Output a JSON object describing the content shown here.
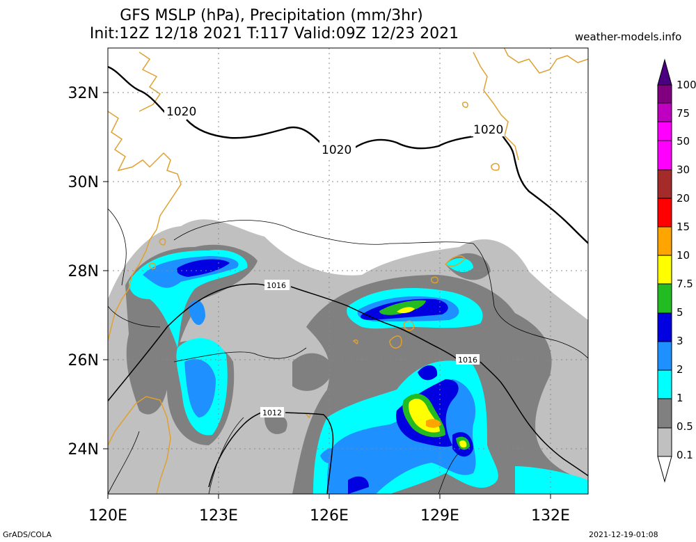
{
  "title_line1": "GFS MSLP (hPa), Precipitation (mm/3hr)",
  "title_line2": "Init:12Z 12/18 2021 T:117 Valid:09Z 12/23 2021",
  "credit": "weather-models.info",
  "footer_left": "GrADS/COLA",
  "footer_right": "2021-12-19-01:08",
  "lat_labels": [
    "32N",
    "30N",
    "28N",
    "26N",
    "24N"
  ],
  "lon_labels": [
    "120E",
    "123E",
    "126E",
    "129E",
    "132E"
  ],
  "colorbar": {
    "levels": [
      "0.1",
      "0.5",
      "1",
      "2",
      "3",
      "5",
      "7.5",
      "10",
      "15",
      "20",
      "30",
      "50",
      "75",
      "100"
    ],
    "colors": [
      "#c0c0c0",
      "#808080",
      "#5a5a5a",
      "#00ffff",
      "#1e90ff",
      "#0000e0",
      "#22bb22",
      "#ffff00",
      "#ffa500",
      "#ff0000",
      "#a52a2a",
      "#ff00ff",
      "#c000c0",
      "#800080",
      "#4b0082"
    ]
  },
  "isobars": [
    {
      "label": "1020",
      "pressure_hpa": 1020
    },
    {
      "label": "1020",
      "pressure_hpa": 1020
    },
    {
      "label": "1020",
      "pressure_hpa": 1020
    },
    {
      "label": "1016",
      "pressure_hpa": 1016
    },
    {
      "label": "1016",
      "pressure_hpa": 1016
    },
    {
      "label": "1012",
      "pressure_hpa": 1012
    }
  ],
  "map": {
    "lon_min": 120,
    "lon_max": 133,
    "lat_min": 23,
    "lat_max": 33,
    "precip_colors": {
      "light": "#c0c0c0",
      "med": "#808080",
      "dark": "#5a5a5a",
      "cyan": "#00ffff",
      "lblue": "#1e90ff",
      "blue": "#0000e0",
      "green": "#22bb22",
      "yellow": "#ffff00",
      "orange": "#ffa500"
    },
    "coast_color": "#e0a030"
  }
}
